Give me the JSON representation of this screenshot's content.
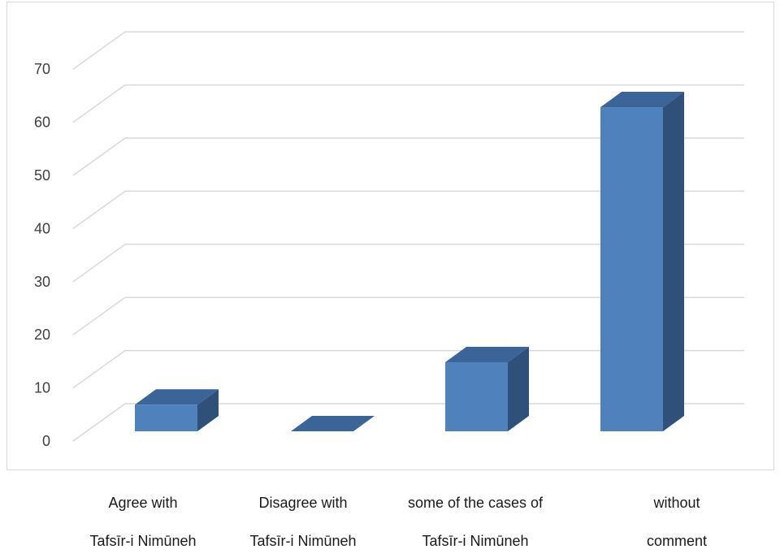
{
  "chart_data": {
    "type": "bar",
    "style": "3d-column",
    "title": "",
    "xlabel": "",
    "ylabel": "",
    "ylim": [
      0,
      70
    ],
    "yticks": [
      0,
      10,
      20,
      30,
      40,
      50,
      60,
      70
    ],
    "grid": true,
    "legend": "none",
    "categories": [
      [
        "Agree with",
        "Tafsīr-i Nimūneh"
      ],
      [
        "Disagree with",
        "Tafsīr-i Nimūneh"
      ],
      [
        "some of the cases of",
        "Tafsīr-i Nimūneh"
      ],
      [
        "without",
        "comment"
      ]
    ],
    "series": [
      {
        "values": [
          5,
          0,
          13,
          61
        ]
      }
    ],
    "colors": {
      "bar_front": "#4f81bd",
      "bar_top": "#3b6498",
      "bar_side": "#2f5078",
      "grid": "#d9d9d9",
      "axis_text": "#404040"
    }
  }
}
